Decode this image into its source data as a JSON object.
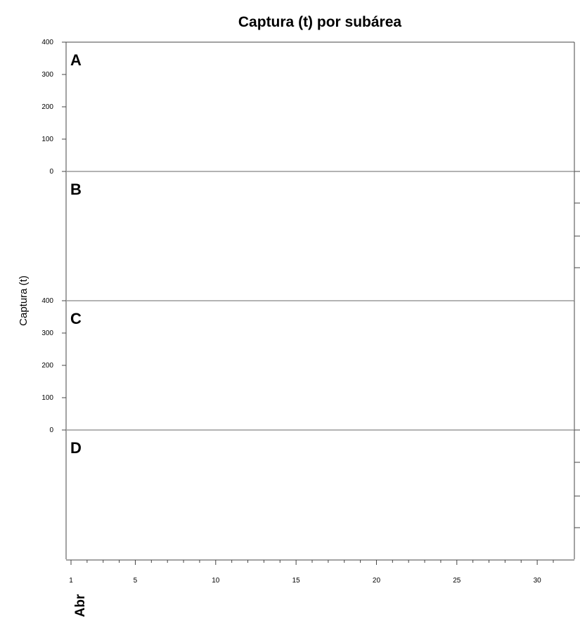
{
  "chart_data": {
    "type": "line",
    "title": "Captura (t) por subárea",
    "ylabel": "Captura (t)",
    "xlabel": "Abr",
    "panels": [
      {
        "label": "A",
        "ylim": [
          0,
          400
        ],
        "yticks": [
          0,
          100,
          200,
          300,
          400
        ],
        "y_axis": "left",
        "series": []
      },
      {
        "label": "B",
        "ylim": [
          0,
          400
        ],
        "yticks": [],
        "y_axis": "right",
        "series": []
      },
      {
        "label": "C",
        "ylim": [
          0,
          400
        ],
        "yticks": [
          0,
          100,
          200,
          300,
          400
        ],
        "y_axis": "left",
        "series": []
      },
      {
        "label": "D",
        "ylim": [
          0,
          400
        ],
        "yticks": [],
        "y_axis": "right",
        "series": []
      }
    ],
    "xlim": [
      1,
      31
    ],
    "xticks": [
      1,
      5,
      10,
      15,
      20,
      25,
      30
    ],
    "xtick_labels": [
      "1",
      "5",
      "10",
      "15",
      "20",
      "25",
      "30"
    ],
    "grid": false,
    "legend": "none"
  }
}
